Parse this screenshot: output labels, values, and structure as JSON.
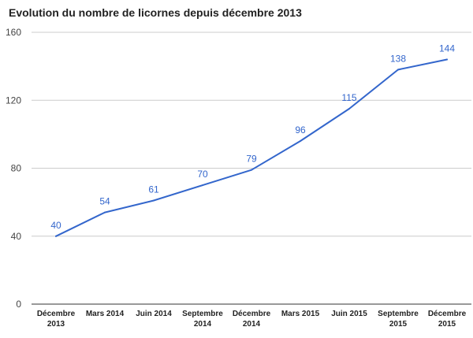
{
  "chart_data": {
    "type": "line",
    "title": "Evolution du nombre de licornes depuis décembre 2013",
    "xlabel": "",
    "ylabel": "",
    "categories": [
      [
        "Décembre",
        "2013"
      ],
      [
        "Mars 2014"
      ],
      [
        "Juin 2014"
      ],
      [
        "Septembre",
        "2014"
      ],
      [
        "Décembre",
        "2014"
      ],
      [
        "Mars 2015"
      ],
      [
        "Juin 2015"
      ],
      [
        "Septembre",
        "2015"
      ],
      [
        "Décembre",
        "2015"
      ]
    ],
    "series": [
      {
        "values": [
          40,
          54,
          61,
          70,
          79,
          96,
          115,
          138,
          144
        ]
      }
    ],
    "ylim": [
      0,
      160
    ],
    "yticks": [
      0,
      40,
      80,
      120,
      160
    ],
    "grid": true,
    "data_labels": true,
    "colors": {
      "line": "#3366cc",
      "data_label": "#3366cc",
      "grid": "#cccccc",
      "baseline": "#333333",
      "tick_label": "#444444",
      "category_label": "#222222"
    }
  }
}
